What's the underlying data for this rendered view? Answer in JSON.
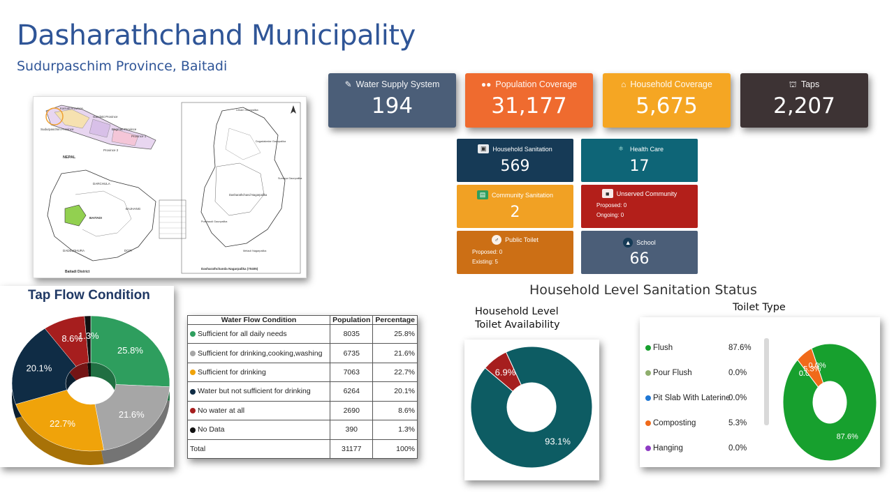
{
  "header": {
    "title": "Dasharathchand Municipality",
    "subtitle": "Sudurpaschim Province, Baitadi"
  },
  "map": {
    "labels": [
      "Karnali Province",
      "Gandaki Province",
      "Sudurpaschim Province",
      "Bagmati Province",
      "Province 1",
      "Province 2",
      "NEPAL",
      "DARCHULA",
      "BAJHANG",
      "BAITADI",
      "DADELDHURA",
      "DOTI",
      "Baitadi District",
      "Dasharathchand Nagarpalika",
      "Purchaudi Gaunpalika",
      "Melauli Nagarpalika",
      "Dasharathchanda Nagarpalika (70405)",
      "Lekam Gaunpalika",
      "Dogadakedar Gaunpalika",
      "Surnaya Gaunpalika"
    ]
  },
  "stats": [
    {
      "label": "Water Supply System",
      "value": "194",
      "icon": "pencil-square-icon",
      "color": "#4b5e78"
    },
    {
      "label": "Population Coverage",
      "value": "31,177",
      "icon": "users-icon",
      "color": "#ef6b2f"
    },
    {
      "label": "Household Coverage",
      "value": "5,675",
      "icon": "home-icon",
      "color": "#f5a623"
    },
    {
      "label": "Taps",
      "value": "2,207",
      "icon": "faucet-icon",
      "color": "#3d3334"
    }
  ],
  "small_cards": {
    "household_sanitation": {
      "label": "Household Sanitation",
      "value": "569",
      "color": "#163a56"
    },
    "health_care": {
      "label": "Health Care",
      "value": "17",
      "color": "#0e6577"
    },
    "community_sanitation": {
      "label": "Community Sanitation",
      "value": "2",
      "color": "#f1a124"
    },
    "unserved_community": {
      "label": "Unserved Community",
      "proposed": "Proposed: 0",
      "ongoing": "Ongoing: 0",
      "color": "#b31f1a"
    },
    "public_toilet": {
      "label": "Public Toilet",
      "proposed": "Proposed: 0",
      "existing": "Existing: 5",
      "color": "#cc6f15"
    },
    "school": {
      "label": "School",
      "value": "66",
      "color": "#4b5e78"
    }
  },
  "tap_flow": {
    "title": "Tap Flow Condition",
    "table": {
      "headers": [
        "Water Flow Condition",
        "Population",
        "Percentage"
      ],
      "rows": [
        {
          "label": "Sufficient for all daily needs",
          "population": "8035",
          "percentage": "25.8%",
          "color": "#2e9e5e"
        },
        {
          "label": "Sufficient for drinking,cooking,washing",
          "population": "6735",
          "percentage": "21.6%",
          "color": "#a6a6a6"
        },
        {
          "label": "Sufficient for drinking",
          "population": "7063",
          "percentage": "22.7%",
          "color": "#f0a30a"
        },
        {
          "label": "Water but not sufficient for drinking",
          "population": "6264",
          "percentage": "20.1%",
          "color": "#0f2c45"
        },
        {
          "label": "No water at all",
          "population": "2690",
          "percentage": "8.6%",
          "color": "#a61e1e"
        },
        {
          "label": "No Data",
          "population": "390",
          "percentage": "1.3%",
          "color": "#111111"
        }
      ],
      "total": {
        "label": "Total",
        "population": "31177",
        "percentage": "100%"
      }
    }
  },
  "sanitation": {
    "heading": "Household Level Sanitation Status",
    "toilet_availability_title": "Household Level Toilet Availability",
    "toilet_type_title": "Toilet Type",
    "toilet_type_legend": [
      {
        "label": "Flush",
        "value": "87.6%",
        "color": "#17a02e"
      },
      {
        "label": "Pour Flush",
        "value": "0.0%",
        "color": "#8fae6d"
      },
      {
        "label": "Pit Slab With Laterine",
        "value": "0.0%",
        "color": "#1f77d4"
      },
      {
        "label": "Composting",
        "value": "5.3%",
        "color": "#f06a1a"
      },
      {
        "label": "Hanging",
        "value": "0.0%",
        "color": "#8e3cc4"
      }
    ]
  },
  "chart_data": [
    {
      "type": "pie",
      "title": "Tap Flow Condition",
      "categories": [
        "Sufficient for all daily needs",
        "Sufficient for drinking,cooking,washing",
        "Sufficient for drinking",
        "Water but not sufficient for drinking",
        "No water at all",
        "No Data"
      ],
      "values": [
        25.8,
        21.6,
        22.7,
        20.1,
        8.6,
        1.3
      ],
      "labels": [
        "25.8%",
        "21.6%",
        "22.7%",
        "20.1%",
        "8.6%",
        "1.3%"
      ],
      "colors": [
        "#2e9e5e",
        "#a6a6a6",
        "#f0a30a",
        "#0f2c45",
        "#a61e1e",
        "#111111"
      ]
    },
    {
      "type": "pie",
      "title": "Household Level Toilet Availability",
      "categories": [
        "",
        ""
      ],
      "values": [
        93.1,
        6.9
      ],
      "labels": [
        "93.1%",
        "6.9%"
      ],
      "colors": [
        "#0d5c63",
        "#a61e1e"
      ]
    },
    {
      "type": "pie",
      "title": "Toilet Type",
      "categories": [
        "Flush",
        "Pour Flush",
        "Pit Slab With Laterine",
        "Composting",
        "Hanging"
      ],
      "values": [
        87.6,
        0.0,
        0.0,
        5.3,
        0.0
      ],
      "labels": [
        "87.6%",
        "0.0%",
        "0.0%",
        "5.3%",
        "0.0%"
      ],
      "colors": [
        "#17a02e",
        "#8fae6d",
        "#1f77d4",
        "#f06a1a",
        "#8e3cc4"
      ]
    }
  ]
}
